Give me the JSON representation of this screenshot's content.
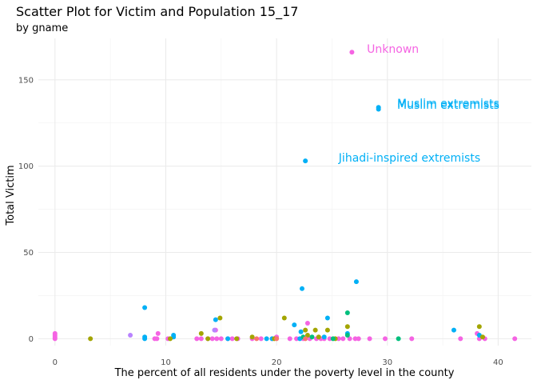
{
  "chart_data": {
    "type": "scatter",
    "title": "Scatter Plot for Victim and Population 15_17",
    "subtitle": "by gname",
    "xlabel": "The percent of all residents under the poverty level in the county",
    "ylabel": "Total Victim",
    "xlim": [
      -1.5,
      43
    ],
    "ylim": [
      -4,
      174
    ],
    "x_ticks": [
      0,
      10,
      20,
      30,
      40
    ],
    "y_ticks": [
      0,
      50,
      100,
      150
    ],
    "grid": true,
    "legend": "none",
    "colors": {
      "pink": "#f564e3",
      "blue": "#00b0f6",
      "olive": "#a3a500",
      "teal": "#00bf7d",
      "purple": "#b983ff",
      "orange": "#e76bf3",
      "red": "#f8766d"
    },
    "annotations": [
      {
        "text": "Unknown",
        "x": 30.5,
        "y": 168,
        "color": "#f564e3"
      },
      {
        "text": "Muslim extremists",
        "x": 35.5,
        "y": 136.5,
        "color": "#00b0f6"
      },
      {
        "text": "Muslim extremists",
        "x": 35.5,
        "y": 135.5,
        "color": "#00b0f6"
      },
      {
        "text": "Jihadi-inspired extremists",
        "x": 32,
        "y": 105,
        "color": "#00b0f6"
      }
    ],
    "series": [
      {
        "color": "#f564e3",
        "points": [
          [
            26.8,
            166
          ],
          [
            0,
            3
          ],
          [
            0,
            2
          ],
          [
            0,
            1
          ],
          [
            0,
            0
          ],
          [
            9.3,
            3
          ],
          [
            9,
            0
          ],
          [
            9.2,
            0
          ],
          [
            10.2,
            0
          ],
          [
            12.8,
            0
          ],
          [
            13.2,
            0
          ],
          [
            13.8,
            0
          ],
          [
            14.2,
            0
          ],
          [
            14.6,
            0
          ],
          [
            14.5,
            5
          ],
          [
            15,
            0
          ],
          [
            15.6,
            0
          ],
          [
            16,
            0
          ],
          [
            16.5,
            0
          ],
          [
            17.8,
            0
          ],
          [
            18.6,
            0
          ],
          [
            19.6,
            0
          ],
          [
            20,
            1
          ],
          [
            21.2,
            0
          ],
          [
            21.8,
            0
          ],
          [
            22.4,
            0
          ],
          [
            22.8,
            9
          ],
          [
            23,
            0
          ],
          [
            23.6,
            0
          ],
          [
            24,
            0
          ],
          [
            24.3,
            0
          ],
          [
            24.8,
            0
          ],
          [
            25.6,
            0
          ],
          [
            26,
            0
          ],
          [
            26.6,
            0
          ],
          [
            27.1,
            0
          ],
          [
            27.4,
            0
          ],
          [
            28.4,
            0
          ],
          [
            29.8,
            0
          ],
          [
            32.2,
            0
          ],
          [
            36.6,
            0
          ],
          [
            38.1,
            3
          ],
          [
            38.3,
            0
          ],
          [
            38.8,
            0
          ],
          [
            41.5,
            0
          ]
        ]
      },
      {
        "color": "#00b0f6",
        "points": [
          [
            29.2,
            134
          ],
          [
            29.2,
            133
          ],
          [
            22.6,
            103
          ],
          [
            22.3,
            29
          ],
          [
            27.2,
            33
          ],
          [
            8.1,
            18
          ],
          [
            24.6,
            12
          ],
          [
            14.5,
            11
          ],
          [
            21.6,
            8
          ],
          [
            8.1,
            1
          ],
          [
            8.1,
            0
          ],
          [
            10.7,
            2
          ],
          [
            10.7,
            1
          ],
          [
            15.6,
            0
          ],
          [
            19.1,
            0
          ],
          [
            22.2,
            4
          ],
          [
            22.1,
            0
          ],
          [
            24.3,
            1
          ],
          [
            26.4,
            3
          ],
          [
            36,
            5
          ],
          [
            38.3,
            2
          ],
          [
            19.6,
            0
          ]
        ]
      },
      {
        "color": "#a3a500",
        "points": [
          [
            3.2,
            0
          ],
          [
            10.4,
            0
          ],
          [
            13.2,
            3
          ],
          [
            14.9,
            12
          ],
          [
            13.8,
            0
          ],
          [
            17.8,
            1
          ],
          [
            19.8,
            0
          ],
          [
            20.7,
            12
          ],
          [
            22.6,
            5
          ],
          [
            23.5,
            5
          ],
          [
            24.6,
            5
          ],
          [
            22.8,
            2
          ],
          [
            26.4,
            7
          ],
          [
            25.3,
            0
          ],
          [
            38.3,
            7
          ],
          [
            38.6,
            1
          ],
          [
            16.4,
            0
          ],
          [
            23.8,
            1
          ]
        ]
      },
      {
        "color": "#00bf7d",
        "points": [
          [
            26.4,
            15
          ],
          [
            26.4,
            2
          ],
          [
            31,
            0
          ],
          [
            23.2,
            1
          ],
          [
            25.1,
            0
          ],
          [
            22.4,
            1
          ]
        ]
      },
      {
        "color": "#b983ff",
        "points": [
          [
            6.8,
            2
          ],
          [
            14.4,
            5
          ]
        ]
      },
      {
        "color": "#f8766d",
        "points": [
          [
            18.2,
            0
          ],
          [
            22.6,
            0
          ],
          [
            20,
            0
          ]
        ]
      }
    ]
  }
}
